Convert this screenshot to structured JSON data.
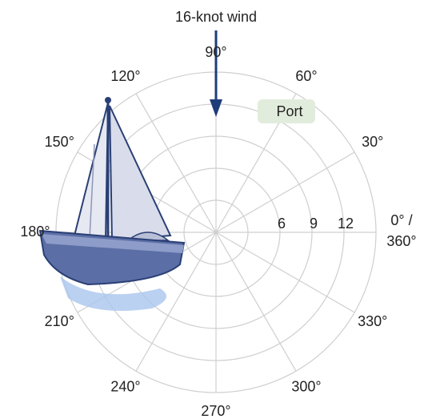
{
  "wind_label": "16-knot wind",
  "angle_labels": [
    "0° / 360°",
    "30°",
    "60°",
    "90°",
    "120°",
    "150°",
    "180°",
    "210°",
    "240°",
    "270°",
    "300°",
    "330°"
  ],
  "radial_labels": [
    "6",
    "9",
    "12"
  ],
  "port_label": "Port"
}
